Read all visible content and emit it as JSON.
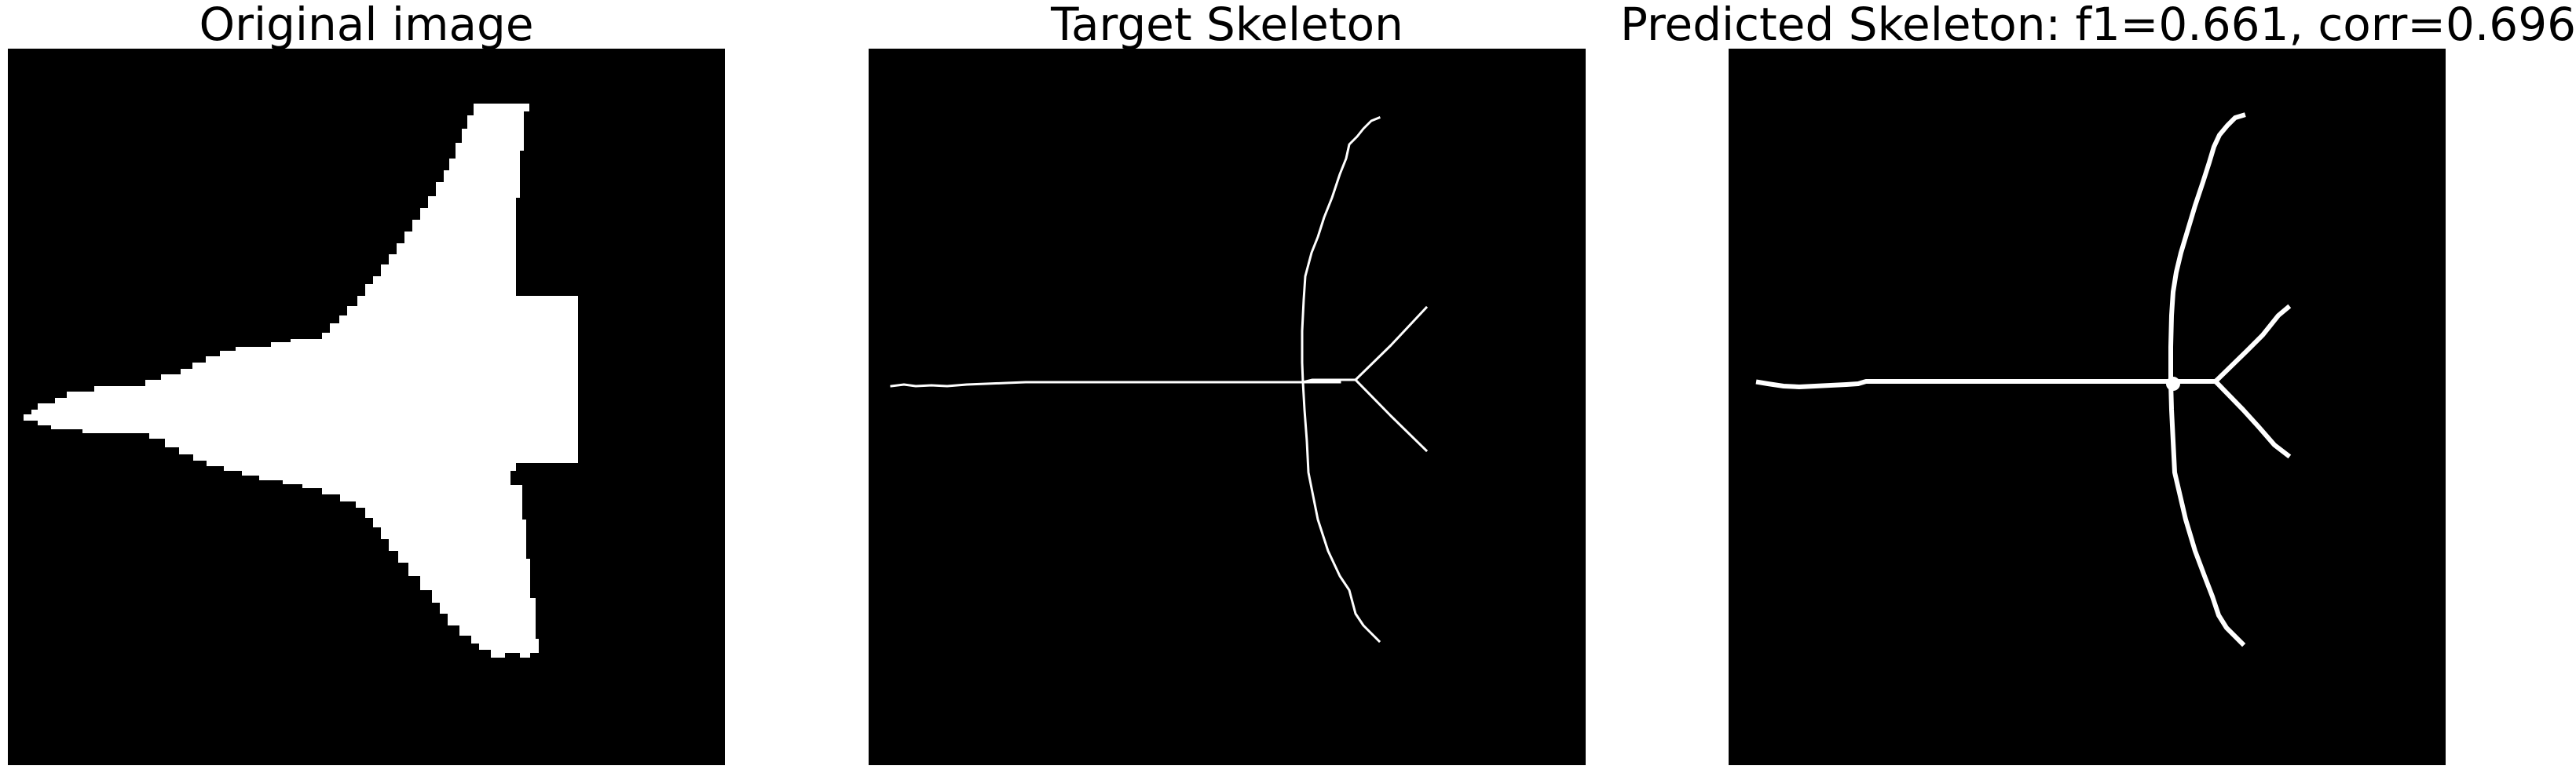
{
  "panels": [
    {
      "title": "Original image"
    },
    {
      "title": "Target Skeleton"
    },
    {
      "title": "Predicted Skeleton: f1=0.661, corr=0.696"
    }
  ],
  "colors": {
    "background": "#000000",
    "foreground": "#ffffff",
    "figure_background": "#ffffff"
  }
}
